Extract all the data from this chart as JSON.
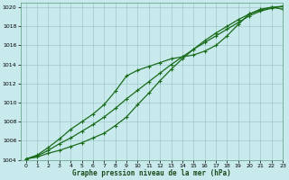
{
  "xlabel": "Graphe pression niveau de la mer (hPa)",
  "xlim": [
    -0.5,
    23
  ],
  "ylim": [
    1004,
    1020.5
  ],
  "yticks": [
    1004,
    1006,
    1008,
    1010,
    1012,
    1014,
    1016,
    1018,
    1020
  ],
  "xticks": [
    0,
    1,
    2,
    3,
    4,
    5,
    6,
    7,
    8,
    9,
    10,
    11,
    12,
    13,
    14,
    15,
    16,
    17,
    18,
    19,
    20,
    21,
    22,
    23
  ],
  "bg_color": "#c8eaed",
  "line_color": "#1a6b1a",
  "grid_color": "#a0c8c8",
  "line1_x": [
    0,
    1,
    2,
    3,
    4,
    5,
    6,
    7,
    8,
    9,
    10,
    11,
    12,
    13,
    14,
    15,
    16,
    17,
    18,
    19,
    20,
    21,
    22,
    23
  ],
  "line1_y": [
    1004.1,
    1004.5,
    1005.3,
    1006.2,
    1007.2,
    1008.0,
    1008.8,
    1009.8,
    1011.2,
    1012.8,
    1013.4,
    1013.8,
    1014.2,
    1014.6,
    1014.8,
    1015.0,
    1015.4,
    1016.0,
    1017.0,
    1018.2,
    1019.3,
    1019.8,
    1020.0,
    1019.8
  ],
  "line2_x": [
    0,
    1,
    2,
    3,
    4,
    5,
    6,
    7,
    8,
    9,
    10,
    11,
    12,
    13,
    14,
    15,
    16,
    17,
    18,
    19,
    20,
    21,
    22,
    23
  ],
  "line2_y": [
    1004.1,
    1004.4,
    1005.0,
    1005.7,
    1006.3,
    1007.0,
    1007.7,
    1008.5,
    1009.4,
    1010.4,
    1011.3,
    1012.2,
    1013.1,
    1014.0,
    1014.8,
    1015.6,
    1016.3,
    1017.0,
    1017.7,
    1018.4,
    1019.1,
    1019.6,
    1019.9,
    1020.1
  ],
  "line3_x": [
    0,
    1,
    2,
    3,
    4,
    5,
    6,
    7,
    8,
    9,
    10,
    11,
    12,
    13,
    14,
    15,
    16,
    17,
    18,
    19,
    20,
    21,
    22,
    23
  ],
  "line3_y": [
    1004.1,
    1004.3,
    1004.7,
    1005.0,
    1005.4,
    1005.8,
    1006.3,
    1006.8,
    1007.6,
    1008.5,
    1009.8,
    1011.0,
    1012.3,
    1013.5,
    1014.6,
    1015.6,
    1016.5,
    1017.3,
    1018.0,
    1018.7,
    1019.3,
    1019.7,
    1020.0,
    1020.1
  ]
}
